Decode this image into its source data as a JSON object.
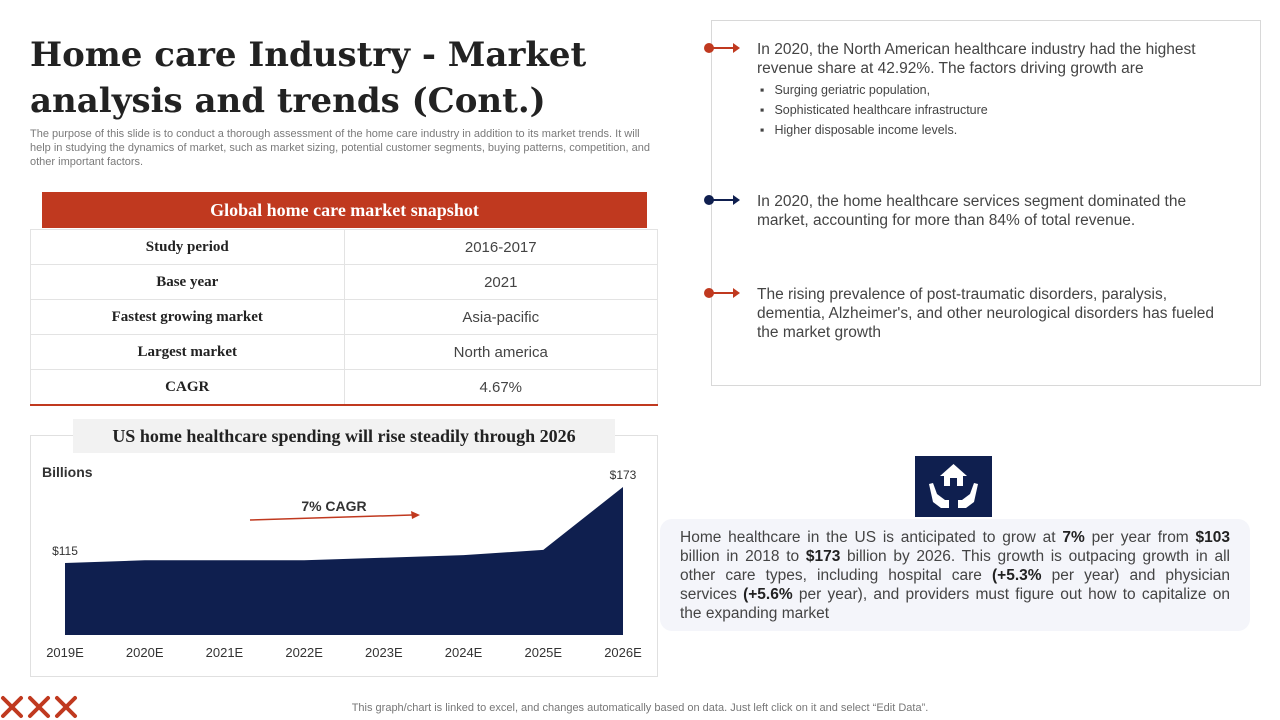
{
  "title": "Home care Industry - Market analysis and trends (Cont.)",
  "intro": "The purpose of this slide is to conduct a thorough assessment of the home care industry in addition to its market trends. It will help in studying the dynamics of market, such as market sizing, potential customer segments, buying patterns, competition, and other important factors.",
  "snapshot": {
    "header": "Global home care market snapshot",
    "rows": [
      {
        "label": "Study period",
        "value": "2016-2017"
      },
      {
        "label": "Base year",
        "value": "2021"
      },
      {
        "label": "Fastest growing market",
        "value": "Asia-pacific"
      },
      {
        "label": "Largest market",
        "value": "North america"
      },
      {
        "label": "CAGR",
        "value": "4.67%"
      }
    ]
  },
  "chart_data": {
    "type": "area",
    "title": "US home healthcare spending will rise steadily through 2026",
    "ylabel": "Billions",
    "categories": [
      "2019E",
      "2020E",
      "2021E",
      "2022E",
      "2023E",
      "2024E",
      "2025E",
      "2026E"
    ],
    "values": [
      115,
      117,
      117,
      117,
      119,
      121,
      125,
      173
    ],
    "point_labels": [
      {
        "index": 0,
        "text": "$115"
      },
      {
        "index": 7,
        "text": "$173"
      }
    ],
    "annotation": "7% CAGR",
    "ylim": [
      0,
      180
    ],
    "grid": false,
    "color": "#0f1f4f"
  },
  "insights": {
    "items": [
      {
        "text": "In 2020, the North American healthcare industry had the highest revenue share at 42.92%. The factors driving growth are",
        "color": "#c0391f"
      },
      {
        "text": "In 2020, the home healthcare services segment dominated the market, accounting for more than 84% of total revenue.",
        "color": "#0f1f4f"
      },
      {
        "text": "The rising prevalence of post-traumatic disorders, paralysis, dementia, Alzheimer's, and other neurological disorders has fueled the market growth",
        "color": "#c0391f"
      }
    ],
    "bullets": [
      "Surging geriatric population,",
      "Sophisticated healthcare infrastructure",
      "Higher disposable income levels."
    ]
  },
  "growth": {
    "p1": "Home healthcare in the US is anticipated to grow at ",
    "b1": "7%",
    "p2": " per year from ",
    "b2": "$103",
    "p3": " billion in 2018 to ",
    "b3": "$173",
    "p4": " billion by 2026. This growth is outpacing growth in all other care types, including hospital care ",
    "b4": "(+5.3%",
    "p5": " per year) and physician services ",
    "b5": "(+5.6%",
    "p6": " per year), and providers must figure out how to capitalize on the expanding market"
  },
  "footer_note": "This graph/chart is linked to excel, and changes automatically based on data. Just left click on it and select “Edit Data”.",
  "icons": {
    "house": "home-care-hands-icon",
    "logo": "cross-marks-logo"
  }
}
